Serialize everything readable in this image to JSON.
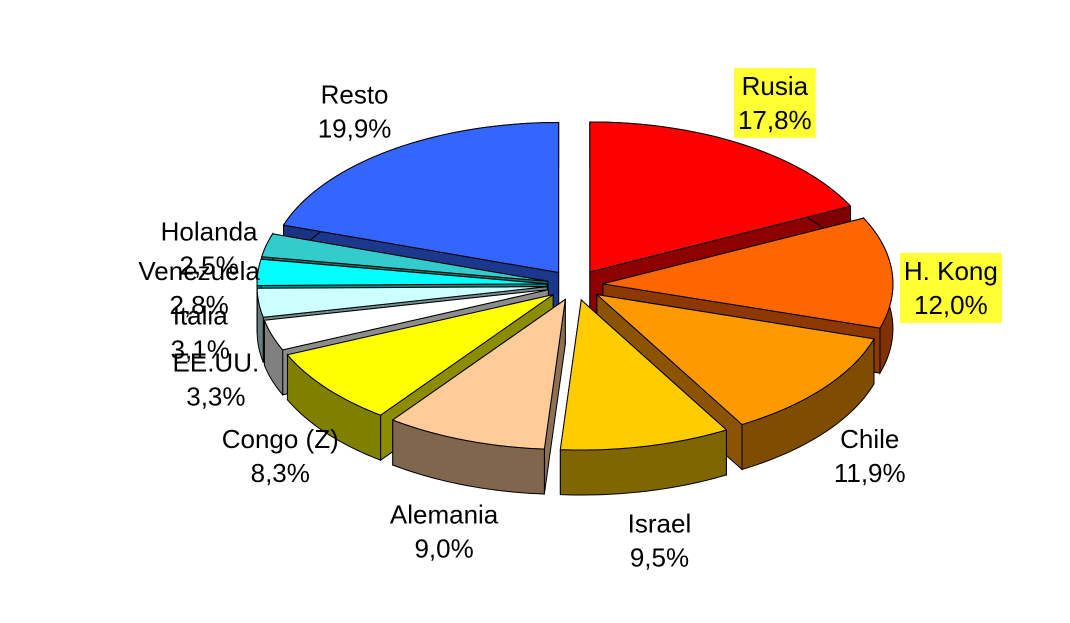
{
  "chart_data": {
    "type": "pie3d",
    "categories": [
      "Rusia",
      "H. Kong",
      "Chile",
      "Israel",
      "Alemania",
      "Congo (Z)",
      "EE.UU.",
      "Italia",
      "Venezuela",
      "Holanda",
      "Resto"
    ],
    "values": [
      17.8,
      12.0,
      11.9,
      9.5,
      9.0,
      8.3,
      3.3,
      3.1,
      2.8,
      2.5,
      19.9
    ],
    "value_labels": [
      "17,8%",
      "12,0%",
      "11,9%",
      "9,5%",
      "9,0%",
      "8,3%",
      "3,3%",
      "3,1%",
      "2,8%",
      "2,5%",
      "19,9%"
    ],
    "colors": [
      "#ff0000",
      "#ff6600",
      "#ff9900",
      "#ffcc00",
      "#ffcc99",
      "#ffff00",
      "#ffffff",
      "#ccffff",
      "#00ffff",
      "#33cccc",
      "#3366ff"
    ],
    "highlighted": [
      true,
      true,
      false,
      false,
      false,
      false,
      false,
      false,
      false,
      false,
      false
    ],
    "highlight_color": "#ffff33"
  }
}
